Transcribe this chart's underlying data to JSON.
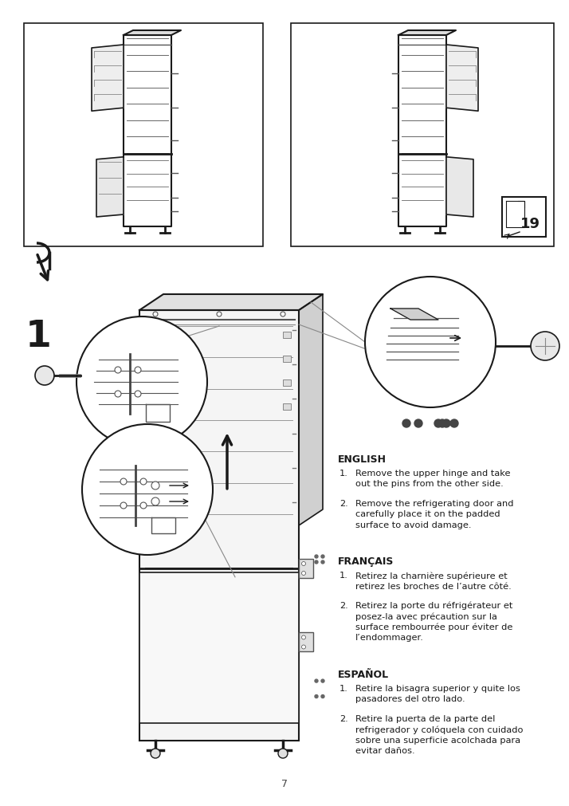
{
  "bg_color": "#ffffff",
  "page_number": "7",
  "sections": [
    {
      "lang": "ENGLISH",
      "items": [
        [
          "Remove the upper hinge and take",
          "out the pins from the other side."
        ],
        [
          "Remove the refrigerating door and",
          "carefully place it on the padded",
          "surface to avoid damage."
        ]
      ]
    },
    {
      "lang": "FRANÇAIS",
      "items": [
        [
          "Retirez la charnière supérieure et",
          "retirez les broches de l’autre côté."
        ],
        [
          "Retirez la porte du réfrigérateur et",
          "posez-la avec précaution sur la",
          "surface rembourrée pour éviter de",
          "l’endommager."
        ]
      ]
    },
    {
      "lang": "ESPAÑOL",
      "items": [
        [
          "Retire la bisagra superior y quite los",
          "pasadores del otro lado."
        ],
        [
          "Retire la puerta de la parte del",
          "refrigerador y colóquela con cuidado",
          "sobre una superficie acolchada para",
          "evitar daños."
        ]
      ]
    }
  ]
}
